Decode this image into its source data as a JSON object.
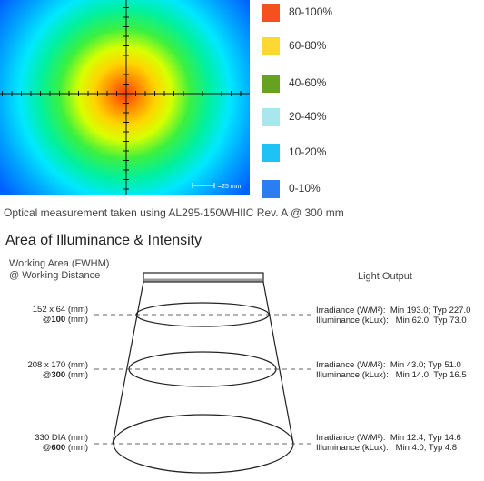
{
  "heatmap": {
    "scale_label": "=25 mm",
    "colors": {
      "red": "#ff2a00",
      "orange": "#ff9a00",
      "yellow": "#f5ff00",
      "green": "#00e35a",
      "cyan": "#00f0ff",
      "blue": "#0070ff"
    }
  },
  "legend": [
    {
      "label": "80-100%",
      "color": "#f4511e"
    },
    {
      "label": "60-80%",
      "color": "#fdd835"
    },
    {
      "label": "40-60%",
      "color": "#66a11f"
    },
    {
      "label": "20-40%",
      "color": "#a9e6ee"
    },
    {
      "label": "10-20%",
      "color": "#1fc3f3"
    },
    {
      "label": "0-10%",
      "color": "#2a7ef2"
    }
  ],
  "caption": "Optical measurement taken using AL295-150WHIIC Rev. A @ 300 mm",
  "section_title": "Area of Illuminance & Intensity",
  "diagram": {
    "left_header_line1": "Working Area (FWHM)",
    "left_header_line2": "@ Working Distance",
    "right_header": "Light Output",
    "levels": [
      {
        "area": "152 x 64 (mm)",
        "distance_at": "@",
        "distance_value": "100",
        "distance_unit": " (mm)",
        "irradiance_label": "Irradiance (W/M²):",
        "irradiance_value": "Min 193.0; Typ 227.0",
        "illuminance_label": "Illuminance  (kLux):",
        "illuminance_value": "Min 62.0; Typ 73.0"
      },
      {
        "area": "208 x 170 (mm)",
        "distance_at": "@",
        "distance_value": "300",
        "distance_unit": " (mm)",
        "irradiance_label": "Irradiance (W/M²):",
        "irradiance_value": "Min 43.0; Typ 51.0",
        "illuminance_label": "Illuminance  (kLux):",
        "illuminance_value": "Min 14.0; Typ 16.5"
      },
      {
        "area": "330 DIA (mm)",
        "distance_at": "@",
        "distance_value": "600",
        "distance_unit": " (mm)",
        "irradiance_label": "Irradiance (W/M²):",
        "irradiance_value": "Min 12.4; Typ 14.6",
        "illuminance_label": "Illuminance  (kLux):",
        "illuminance_value": "Min 4.0; Typ 4.8"
      }
    ]
  }
}
